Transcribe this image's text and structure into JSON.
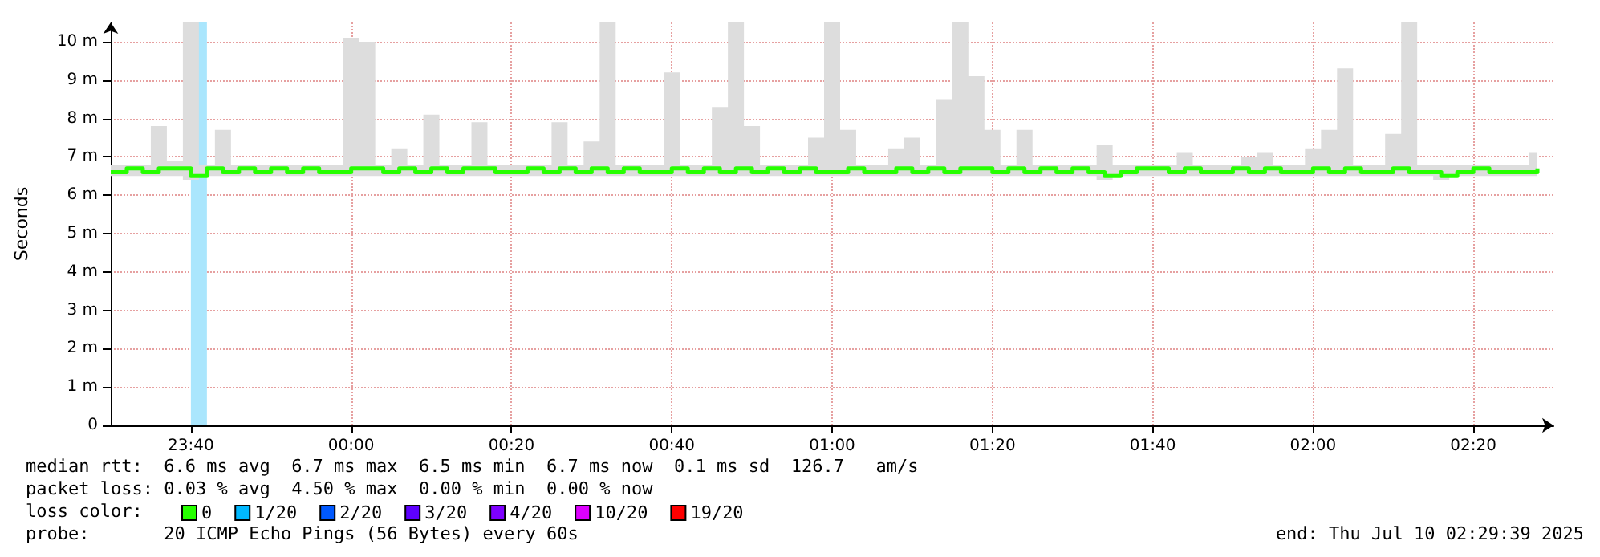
{
  "chart_data": {
    "type": "step",
    "ylabel": "Seconds",
    "legend_title": "loss color:",
    "legend": "bottom",
    "grid": true,
    "marker": "none",
    "xlim": [
      "2025-07-09T23:30",
      "2025-07-10T02:30"
    ],
    "xticks": [
      {
        "value": "2025-07-09T23:40",
        "label": "23:40"
      },
      {
        "value": "2025-07-10T00:00",
        "label": "00:00"
      },
      {
        "value": "2025-07-10T00:20",
        "label": "00:20"
      },
      {
        "value": "2025-07-10T00:40",
        "label": "00:40"
      },
      {
        "value": "2025-07-10T01:00",
        "label": "01:00"
      },
      {
        "value": "2025-07-10T01:20",
        "label": "01:20"
      },
      {
        "value": "2025-07-10T01:40",
        "label": "01:40"
      },
      {
        "value": "2025-07-10T02:00",
        "label": "02:00"
      },
      {
        "value": "2025-07-10T02:20",
        "label": "02:20"
      }
    ],
    "ylim": [
      0,
      10.5
    ],
    "yticks": [
      0,
      {
        "value": 1,
        "label": "1 m"
      },
      {
        "value": 2,
        "label": "2 m"
      },
      {
        "value": 3,
        "label": "3 m"
      },
      {
        "value": 4,
        "label": "4 m"
      },
      {
        "value": 5,
        "label": "5 m"
      },
      {
        "value": 6,
        "label": "6 m"
      },
      {
        "value": 7,
        "label": "7 m"
      },
      {
        "value": 8,
        "label": "8 m"
      },
      {
        "value": 9,
        "label": "9 m"
      },
      {
        "value": 10,
        "label": "10 m"
      }
    ],
    "x": [
      "2025-07-09T23:30",
      "2025-07-09T23:32",
      "2025-07-09T23:34",
      "2025-07-09T23:36",
      "2025-07-09T23:38",
      "2025-07-09T23:40",
      "2025-07-09T23:42",
      "2025-07-09T23:44",
      "2025-07-09T23:46",
      "2025-07-09T23:48",
      "2025-07-09T23:50",
      "2025-07-09T23:52",
      "2025-07-09T23:54",
      "2025-07-09T23:56",
      "2025-07-09T23:58",
      "2025-07-10T00:00",
      "2025-07-10T00:02",
      "2025-07-10T00:04",
      "2025-07-10T00:06",
      "2025-07-10T00:08",
      "2025-07-10T00:10",
      "2025-07-10T00:12",
      "2025-07-10T00:14",
      "2025-07-10T00:16",
      "2025-07-10T00:18",
      "2025-07-10T00:20",
      "2025-07-10T00:22",
      "2025-07-10T00:24",
      "2025-07-10T00:26",
      "2025-07-10T00:28",
      "2025-07-10T00:30",
      "2025-07-10T00:32",
      "2025-07-10T00:34",
      "2025-07-10T00:36",
      "2025-07-10T00:38",
      "2025-07-10T00:40",
      "2025-07-10T00:42",
      "2025-07-10T00:44",
      "2025-07-10T00:46",
      "2025-07-10T00:48",
      "2025-07-10T00:50",
      "2025-07-10T00:52",
      "2025-07-10T00:54",
      "2025-07-10T00:56",
      "2025-07-10T00:58",
      "2025-07-10T01:00",
      "2025-07-10T01:02",
      "2025-07-10T01:04",
      "2025-07-10T01:06",
      "2025-07-10T01:08",
      "2025-07-10T01:10",
      "2025-07-10T01:12",
      "2025-07-10T01:14",
      "2025-07-10T01:16",
      "2025-07-10T01:18",
      "2025-07-10T01:20",
      "2025-07-10T01:22",
      "2025-07-10T01:24",
      "2025-07-10T01:26",
      "2025-07-10T01:28",
      "2025-07-10T01:30",
      "2025-07-10T01:32",
      "2025-07-10T01:34",
      "2025-07-10T01:36",
      "2025-07-10T01:38",
      "2025-07-10T01:40",
      "2025-07-10T01:42",
      "2025-07-10T01:44",
      "2025-07-10T01:46",
      "2025-07-10T01:48",
      "2025-07-10T01:50",
      "2025-07-10T01:52",
      "2025-07-10T01:54",
      "2025-07-10T01:56",
      "2025-07-10T01:58",
      "2025-07-10T02:00",
      "2025-07-10T02:02",
      "2025-07-10T02:04",
      "2025-07-10T02:06",
      "2025-07-10T02:08",
      "2025-07-10T02:10",
      "2025-07-10T02:12",
      "2025-07-10T02:14",
      "2025-07-10T02:16",
      "2025-07-10T02:18",
      "2025-07-10T02:20",
      "2025-07-10T02:22",
      "2025-07-10T02:24",
      "2025-07-10T02:26",
      "2025-07-10T02:28"
    ],
    "series": [
      {
        "name": "0",
        "color": "#26ff00",
        "values": [
          6.6,
          6.7,
          6.6,
          6.7,
          6.7,
          6.5,
          6.7,
          6.6,
          6.7,
          6.6,
          6.7,
          6.6,
          6.7,
          6.6,
          6.6,
          6.7,
          6.7,
          6.6,
          6.7,
          6.6,
          6.7,
          6.6,
          6.7,
          6.7,
          6.6,
          6.6,
          6.7,
          6.6,
          6.7,
          6.6,
          6.7,
          6.6,
          6.7,
          6.6,
          6.6,
          6.7,
          6.6,
          6.7,
          6.6,
          6.7,
          6.6,
          6.7,
          6.6,
          6.7,
          6.6,
          6.6,
          6.7,
          6.6,
          6.6,
          6.7,
          6.6,
          6.7,
          6.6,
          6.7,
          6.7,
          6.6,
          6.7,
          6.6,
          6.7,
          6.6,
          6.7,
          6.6,
          6.5,
          6.6,
          6.7,
          6.7,
          6.6,
          6.7,
          6.6,
          6.6,
          6.7,
          6.6,
          6.7,
          6.6,
          6.6,
          6.7,
          6.6,
          6.7,
          6.6,
          6.6,
          6.7,
          6.6,
          6.6,
          6.5,
          6.6,
          6.7,
          6.6,
          6.6,
          6.6,
          6.7
        ],
        "lower": [
          6.5,
          6.5,
          6.5,
          6.5,
          6.5,
          6.4,
          6.5,
          6.5,
          6.5,
          6.5,
          6.5,
          6.5,
          6.5,
          6.5,
          6.5,
          6.5,
          6.5,
          6.5,
          6.5,
          6.5,
          6.5,
          6.5,
          6.5,
          6.5,
          6.5,
          6.5,
          6.5,
          6.5,
          6.5,
          6.5,
          6.5,
          6.5,
          6.5,
          6.5,
          6.5,
          6.5,
          6.5,
          6.5,
          6.5,
          6.5,
          6.5,
          6.5,
          6.5,
          6.5,
          6.5,
          6.5,
          6.5,
          6.5,
          6.5,
          6.5,
          6.5,
          6.5,
          6.5,
          6.5,
          6.5,
          6.5,
          6.5,
          6.5,
          6.5,
          6.5,
          6.5,
          6.5,
          6.4,
          6.5,
          6.5,
          6.5,
          6.5,
          6.5,
          6.5,
          6.5,
          6.5,
          6.5,
          6.5,
          6.5,
          6.5,
          6.5,
          6.5,
          6.5,
          6.5,
          6.5,
          6.5,
          6.5,
          6.5,
          6.4,
          6.5,
          6.5,
          6.5,
          6.5,
          6.5,
          6.5
        ],
        "upper": [
          6.8,
          6.8,
          6.8,
          7.8,
          6.9,
          10.5,
          6.8,
          7.7,
          6.8,
          6.8,
          6.8,
          6.8,
          6.8,
          6.8,
          6.8,
          10.1,
          10.0,
          6.8,
          7.2,
          6.8,
          8.1,
          6.8,
          6.8,
          7.9,
          6.8,
          6.8,
          6.8,
          6.8,
          7.9,
          6.8,
          7.4,
          10.5,
          6.8,
          6.8,
          6.8,
          9.2,
          6.8,
          6.8,
          8.3,
          10.5,
          7.8,
          6.8,
          6.8,
          6.8,
          7.5,
          10.5,
          7.7,
          6.8,
          6.8,
          7.2,
          7.5,
          6.8,
          8.5,
          10.5,
          9.1,
          7.7,
          6.8,
          7.7,
          6.8,
          6.8,
          6.8,
          6.8,
          7.3,
          6.8,
          6.8,
          6.8,
          6.8,
          7.1,
          6.8,
          6.8,
          6.8,
          7.0,
          7.1,
          6.8,
          6.8,
          7.2,
          7.7,
          9.3,
          6.8,
          6.8,
          7.6,
          10.5,
          6.8,
          6.8,
          6.8,
          6.8,
          6.8,
          6.8,
          6.8,
          7.1
        ]
      },
      {
        "name": "1/20",
        "color": "#00b8ff",
        "values": [
          null,
          null,
          null,
          null,
          null,
          null,
          null,
          null,
          null,
          null,
          null,
          null,
          null,
          null,
          null,
          null,
          null,
          null,
          null,
          null,
          null,
          null,
          null,
          null,
          null,
          null,
          null,
          null,
          null,
          null,
          null,
          null,
          null,
          null,
          null,
          null,
          null,
          null,
          null,
          null,
          null,
          null,
          null,
          null,
          null,
          null,
          null,
          null,
          null,
          null,
          null,
          null,
          null,
          null,
          null,
          null,
          null,
          null,
          null,
          null,
          null,
          null,
          null,
          null,
          null,
          null,
          null,
          null,
          null,
          null,
          null,
          null,
          null,
          null,
          null,
          null,
          null,
          null,
          null,
          null,
          null,
          null,
          null,
          null,
          null,
          null,
          null,
          null,
          null,
          null
        ]
      },
      {
        "name": "2/20",
        "color": "#0059ff",
        "values": [
          null,
          null,
          null,
          null,
          null,
          null,
          null,
          null,
          null,
          null,
          null,
          null,
          null,
          null,
          null,
          null,
          null,
          null,
          null,
          null,
          null,
          null,
          null,
          null,
          null,
          null,
          null,
          null,
          null,
          null,
          null,
          null,
          null,
          null,
          null,
          null,
          null,
          null,
          null,
          null,
          null,
          null,
          null,
          null,
          null,
          null,
          null,
          null,
          null,
          null,
          null,
          null,
          null,
          null,
          null,
          null,
          null,
          null,
          null,
          null,
          null,
          null,
          null,
          null,
          null,
          null,
          null,
          null,
          null,
          null,
          null,
          null,
          null,
          null,
          null,
          null,
          null,
          null,
          null,
          null,
          null,
          null,
          null,
          null,
          null,
          null,
          null,
          null,
          null,
          null
        ]
      },
      {
        "name": "3/20",
        "color": "#5e00ff",
        "values": [
          null,
          null,
          null,
          null,
          null,
          null,
          null,
          null,
          null,
          null,
          null,
          null,
          null,
          null,
          null,
          null,
          null,
          null,
          null,
          null,
          null,
          null,
          null,
          null,
          null,
          null,
          null,
          null,
          null,
          null,
          null,
          null,
          null,
          null,
          null,
          null,
          null,
          null,
          null,
          null,
          null,
          null,
          null,
          null,
          null,
          null,
          null,
          null,
          null,
          null,
          null,
          null,
          null,
          null,
          null,
          null,
          null,
          null,
          null,
          null,
          null,
          null,
          null,
          null,
          null,
          null,
          null,
          null,
          null,
          null,
          null,
          null,
          null,
          null,
          null,
          null,
          null,
          null,
          null,
          null,
          null,
          null,
          null,
          null,
          null,
          null,
          null,
          null,
          null,
          null
        ]
      },
      {
        "name": "4/20",
        "color": "#7e00ff",
        "values": [
          null,
          null,
          null,
          null,
          null,
          null,
          null,
          null,
          null,
          null,
          null,
          null,
          null,
          null,
          null,
          null,
          null,
          null,
          null,
          null,
          null,
          null,
          null,
          null,
          null,
          null,
          null,
          null,
          null,
          null,
          null,
          null,
          null,
          null,
          null,
          null,
          null,
          null,
          null,
          null,
          null,
          null,
          null,
          null,
          null,
          null,
          null,
          null,
          null,
          null,
          null,
          null,
          null,
          null,
          null,
          null,
          null,
          null,
          null,
          null,
          null,
          null,
          null,
          null,
          null,
          null,
          null,
          null,
          null,
          null,
          null,
          null,
          null,
          null,
          null,
          null,
          null,
          null,
          null,
          null,
          null,
          null,
          null,
          null,
          null,
          null,
          null,
          null,
          null,
          null
        ]
      },
      {
        "name": "10/20",
        "color": "#dd00ff",
        "values": [
          null,
          null,
          null,
          null,
          null,
          null,
          null,
          null,
          null,
          null,
          null,
          null,
          null,
          null,
          null,
          null,
          null,
          null,
          null,
          null,
          null,
          null,
          null,
          null,
          null,
          null,
          null,
          null,
          null,
          null,
          null,
          null,
          null,
          null,
          null,
          null,
          null,
          null,
          null,
          null,
          null,
          null,
          null,
          null,
          null,
          null,
          null,
          null,
          null,
          null,
          null,
          null,
          null,
          null,
          null,
          null,
          null,
          null,
          null,
          null,
          null,
          null,
          null,
          null,
          null,
          null,
          null,
          null,
          null,
          null,
          null,
          null,
          null,
          null,
          null,
          null,
          null,
          null,
          null,
          null,
          null,
          null,
          null,
          null,
          null,
          null,
          null,
          null,
          null,
          null
        ]
      },
      {
        "name": "19/20",
        "color": "#ff0000",
        "values": [
          null,
          null,
          null,
          null,
          null,
          null,
          null,
          null,
          null,
          null,
          null,
          null,
          null,
          null,
          null,
          null,
          null,
          null,
          null,
          null,
          null,
          null,
          null,
          null,
          null,
          null,
          null,
          null,
          null,
          null,
          null,
          null,
          null,
          null,
          null,
          null,
          null,
          null,
          null,
          null,
          null,
          null,
          null,
          null,
          null,
          null,
          null,
          null,
          null,
          null,
          null,
          null,
          null,
          null,
          null,
          null,
          null,
          null,
          null,
          null,
          null,
          null,
          null,
          null,
          null,
          null,
          null,
          null,
          null,
          null,
          null,
          null,
          null,
          null,
          null,
          null,
          null,
          null,
          null,
          null,
          null,
          null,
          null,
          null,
          null,
          null,
          null,
          null,
          null,
          null
        ]
      }
    ],
    "bands": [
      {
        "axis": "x",
        "from": "2025-07-09T23:40",
        "to": "2025-07-09T23:42",
        "color": "#aae6fd"
      }
    ],
    "annotations": [
      "median rtt:  6.6 ms avg  6.7 ms max  6.5 ms min  6.7 ms now  0.1 ms sd  126.7   am/s",
      "packet loss: 0.03 % avg  4.50 % max  0.00 % min  0.00 % now",
      "probe:       20 ICMP Echo Pings (56 Bytes) every 60s",
      "end: Thu Jul 10 02:29:39 2025"
    ]
  }
}
